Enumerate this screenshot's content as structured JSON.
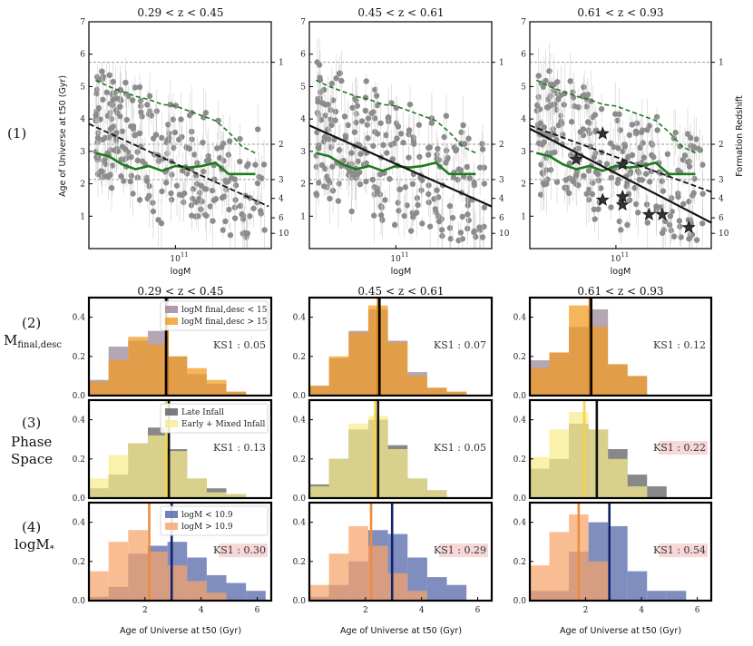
{
  "colors": {
    "points": "#8c8c8c",
    "green": "#1e7a1e",
    "regression": "#111111",
    "row2_a": "#9a8294",
    "row2_b": "#f29a1f",
    "row2_line": "#c8720f",
    "row3_a": "#5a5a5a",
    "row3_b": "#f6ec8c",
    "row3_line": "#f5d24a",
    "row4_a": "#4f63a6",
    "row4_b": "#f6a46a",
    "row4_linea": "#13236b",
    "row4_lineb": "#f08a3c",
    "ks_highlight": "#f7d7d7"
  },
  "labels": {
    "scatter_ylabel": "Age of Universe at t50 (Gyr)",
    "scatter_xlabel": "logM",
    "right_ylabel": "Formation Redshift",
    "hist_xlabel": "Age of Universe at t50 (Gyr)",
    "x_tick_scatter": "10",
    "x_tick_scatter_sup": "11"
  },
  "titles": {
    "col1": "0.29 < z < 0.45",
    "col2": "0.45 < z < 0.61",
    "col3": "0.61 < z < 0.93"
  },
  "rows": {
    "r1": {
      "num": "(1)",
      "name": ""
    },
    "r2": {
      "num": "(2)",
      "name": "M",
      "sub": "final,desc"
    },
    "r3": {
      "num": "(3)",
      "name": "Phase",
      "name2": "Space"
    },
    "r4": {
      "num": "(4)",
      "name": "logM",
      "sub": "*"
    }
  },
  "legends": {
    "row2": [
      "logM final,desc < 15",
      "logM final,desc > 15"
    ],
    "row3": [
      "Late Infall",
      "Early + Mixed Infall"
    ],
    "row4": [
      "logM < 10.9",
      "logM > 10.9"
    ]
  },
  "ks": {
    "row2": [
      "KS1 : 0.05",
      "KS1 : 0.07",
      "KS1 : 0.12"
    ],
    "row3": [
      "KS1 : 0.13",
      "KS1 : 0.05",
      "KS1 : 0.22"
    ],
    "row4": [
      "KS1 : 0.30",
      "KS1 : 0.29",
      "KS1 : 0.54"
    ]
  },
  "chart_data": [
    {
      "type": "scatter",
      "panel": "row1",
      "title": "0.29 < z < 0.45 / 0.45 < z < 0.61 / 0.61 < z < 0.93",
      "xlabel": "logM",
      "ylabel": "Age of Universe at t50 (Gyr)",
      "xlim_logM": [
        10.35,
        11.72
      ],
      "ylim": [
        0,
        7
      ],
      "yticks": [
        1,
        2,
        3,
        4,
        5,
        6,
        7
      ],
      "right_axis": {
        "label": "Formation Redshift",
        "ticks": [
          {
            "z": "1",
            "age": 5.75
          },
          {
            "z": "2",
            "age": 3.22
          },
          {
            "z": "3",
            "age": 2.13
          },
          {
            "z": "4",
            "age": 1.55
          },
          {
            "z": "6",
            "age": 0.95
          },
          {
            "z": "10",
            "age": 0.47
          }
        ],
        "reference_lines_at_age": [
          5.75,
          3.22,
          2.13
        ]
      },
      "green_threshold_line": {
        "logM": [
          10.4,
          10.5,
          10.6,
          10.7,
          10.8,
          10.9,
          11.0,
          11.1,
          11.2,
          11.3,
          11.4,
          11.5,
          11.6
        ],
        "age": [
          2.95,
          2.85,
          2.6,
          2.45,
          2.55,
          2.4,
          2.55,
          2.5,
          2.55,
          2.65,
          2.3,
          2.3,
          2.3
        ]
      },
      "green_upper_dashed": {
        "logM": [
          10.4,
          10.5,
          10.6,
          10.7,
          10.8,
          10.9,
          11.0,
          11.1,
          11.2,
          11.3,
          11.4,
          11.5,
          11.6
        ],
        "age": [
          5.2,
          5.0,
          4.85,
          4.7,
          4.6,
          4.45,
          4.4,
          4.25,
          4.1,
          3.95,
          3.6,
          3.15,
          2.95
        ]
      },
      "columns": [
        {
          "z_range": "0.29 < z < 0.45",
          "fit_dashed": {
            "logM": [
              10.35,
              11.7
            ],
            "age": [
              3.85,
              1.3
            ]
          },
          "fit_solid": null
        },
        {
          "z_range": "0.45 < z < 0.61",
          "fit_dashed": null,
          "fit_solid": {
            "logM": [
              10.35,
              11.72
            ],
            "age": [
              3.8,
              1.3
            ]
          }
        },
        {
          "z_range": "0.61 < z < 0.93",
          "fit_dashed": {
            "logM": [
              10.35,
              11.72
            ],
            "age": [
              3.8,
              1.75
            ]
          },
          "fit_solid": {
            "logM": [
              10.35,
              11.72
            ],
            "age": [
              3.7,
              0.8
            ]
          }
        }
      ],
      "stars_col3": [
        {
          "logM": 10.7,
          "age": 2.75
        },
        {
          "logM": 10.9,
          "age": 3.55
        },
        {
          "logM": 11.05,
          "age": 2.6
        },
        {
          "logM": 10.9,
          "age": 1.5
        },
        {
          "logM": 11.05,
          "age": 1.35
        },
        {
          "logM": 11.25,
          "age": 1.05
        },
        {
          "logM": 11.35,
          "age": 1.05
        },
        {
          "logM": 11.55,
          "age": 0.65
        },
        {
          "logM": 11.05,
          "age": 1.6
        }
      ]
    },
    {
      "type": "bar",
      "panel": "row2",
      "xlabel": "Age of Universe at t50 (Gyr)",
      "xlim": [
        0,
        6.5
      ],
      "ylim": [
        0,
        0.5
      ],
      "yticks": [
        0.0,
        0.2,
        0.4
      ],
      "bin_edges": [
        0,
        0.7,
        1.4,
        2.1,
        2.8,
        3.5,
        4.2,
        4.9,
        5.6,
        6.3
      ],
      "columns": [
        {
          "series": [
            {
              "name": "logM final,desc < 15",
              "values": [
                0.08,
                0.25,
                0.28,
                0.33,
                0.2,
                0.11,
                0.06,
                0.02,
                0.0
              ]
            },
            {
              "name": "logM final,desc > 15",
              "values": [
                0.07,
                0.18,
                0.3,
                0.26,
                0.2,
                0.14,
                0.08,
                0.02,
                0.0
              ]
            }
          ],
          "median_lines": [
            2.8,
            2.75
          ],
          "ks": "KS1 : 0.05"
        },
        {
          "series": [
            {
              "name": "logM final,desc < 15",
              "values": [
                0.05,
                0.19,
                0.33,
                0.44,
                0.28,
                0.12,
                0.04,
                0.02,
                0.0
              ]
            },
            {
              "name": "logM final,desc > 15",
              "values": [
                0.05,
                0.2,
                0.32,
                0.46,
                0.27,
                0.1,
                0.04,
                0.02,
                0.0
              ]
            }
          ],
          "median_lines": [
            2.45,
            2.5
          ],
          "ks": "KS1 : 0.07"
        },
        {
          "series": [
            {
              "name": "logM final,desc < 15",
              "values": [
                0.18,
                0.22,
                0.35,
                0.44,
                0.16,
                0.1,
                0.0,
                0.0,
                0.0
              ]
            },
            {
              "name": "logM final,desc > 15",
              "values": [
                0.14,
                0.22,
                0.46,
                0.35,
                0.16,
                0.1,
                0.0,
                0.0,
                0.0
              ]
            }
          ],
          "median_lines": [
            2.15,
            2.2
          ],
          "ks": "KS1 : 0.12"
        }
      ]
    },
    {
      "type": "bar",
      "panel": "row3",
      "xlabel": "Age of Universe at t50 (Gyr)",
      "xlim": [
        0,
        6.5
      ],
      "ylim": [
        0,
        0.5
      ],
      "yticks": [
        0.0,
        0.2,
        0.4
      ],
      "bin_edges": [
        0,
        0.7,
        1.4,
        2.1,
        2.8,
        3.5,
        4.2,
        4.9,
        5.6,
        6.3
      ],
      "columns": [
        {
          "series": [
            {
              "name": "Late Infall",
              "values": [
                0.05,
                0.12,
                0.28,
                0.36,
                0.25,
                0.1,
                0.05,
                0.02,
                0.0
              ]
            },
            {
              "name": "Early + Mixed Infall",
              "values": [
                0.1,
                0.22,
                0.28,
                0.32,
                0.24,
                0.1,
                0.03,
                0.02,
                0.0
              ]
            }
          ],
          "median_lines": [
            2.85,
            2.75
          ],
          "ks": "KS1 : 0.13"
        },
        {
          "series": [
            {
              "name": "Late Infall",
              "values": [
                0.07,
                0.2,
                0.35,
                0.4,
                0.27,
                0.1,
                0.04,
                0.0,
                0.0
              ]
            },
            {
              "name": "Early + Mixed Infall",
              "values": [
                0.06,
                0.2,
                0.38,
                0.42,
                0.25,
                0.1,
                0.04,
                0.0,
                0.0
              ]
            }
          ],
          "median_lines": [
            2.45,
            2.35
          ],
          "ks": "KS1 : 0.05"
        },
        {
          "series": [
            {
              "name": "Late Infall",
              "values": [
                0.15,
                0.2,
                0.38,
                0.35,
                0.25,
                0.12,
                0.06,
                0.0,
                0.0
              ]
            },
            {
              "name": "Early + Mixed Infall",
              "values": [
                0.21,
                0.35,
                0.44,
                0.35,
                0.2,
                0.06,
                0.0,
                0.0,
                0.0
              ]
            }
          ],
          "median_lines": [
            2.4,
            1.95
          ],
          "ks": "KS1 : 0.22"
        }
      ]
    },
    {
      "type": "bar",
      "panel": "row4",
      "xlabel": "Age of Universe at t50 (Gyr)",
      "xlim": [
        0,
        6.5
      ],
      "ylim": [
        0,
        0.5
      ],
      "yticks": [
        0.0,
        0.2,
        0.4
      ],
      "xticks": [
        2,
        4,
        6
      ],
      "bin_edges": [
        0,
        0.7,
        1.4,
        2.1,
        2.8,
        3.5,
        4.2,
        4.9,
        5.6,
        6.3
      ],
      "columns": [
        {
          "series": [
            {
              "name": "logM < 10.9",
              "values": [
                0.02,
                0.07,
                0.24,
                0.28,
                0.3,
                0.22,
                0.13,
                0.09,
                0.05
              ]
            },
            {
              "name": "logM > 10.9",
              "values": [
                0.15,
                0.3,
                0.36,
                0.25,
                0.18,
                0.1,
                0.04,
                0.0,
                0.0
              ]
            }
          ],
          "median_lines": [
            2.95,
            2.15
          ],
          "ks": "KS1 : 0.30"
        },
        {
          "series": [
            {
              "name": "logM < 10.9",
              "values": [
                0.02,
                0.08,
                0.2,
                0.36,
                0.34,
                0.22,
                0.12,
                0.08,
                0.0
              ]
            },
            {
              "name": "logM > 10.9",
              "values": [
                0.08,
                0.24,
                0.38,
                0.28,
                0.14,
                0.05,
                0.0,
                0.0,
                0.0
              ]
            }
          ],
          "median_lines": [
            2.95,
            2.2
          ],
          "ks": "KS1 : 0.29"
        },
        {
          "series": [
            {
              "name": "logM < 10.9",
              "values": [
                0.05,
                0.05,
                0.25,
                0.4,
                0.38,
                0.15,
                0.05,
                0.05,
                0.0
              ]
            },
            {
              "name": "logM > 10.9",
              "values": [
                0.18,
                0.35,
                0.44,
                0.2,
                0.0,
                0.0,
                0.0,
                0.0,
                0.0
              ]
            }
          ],
          "median_lines": [
            2.85,
            1.75
          ],
          "ks": "KS1 : 0.54"
        }
      ]
    }
  ]
}
